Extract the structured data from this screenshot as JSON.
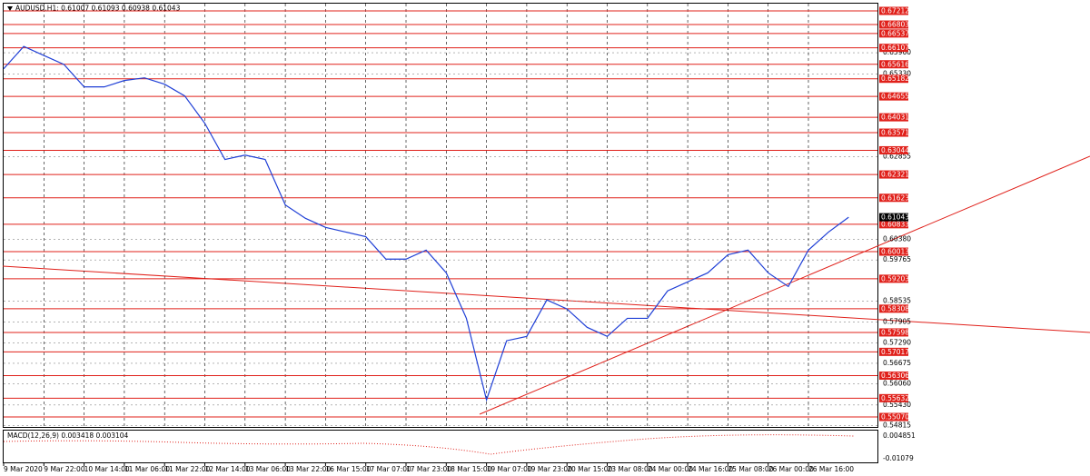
{
  "chart_data": {
    "type": "line",
    "title": "AUDUSD,H1: 0.61007 0.61093 0.60938 0.61043",
    "categories": [
      "9 Mar 2020",
      null,
      "9 Mar 22:00",
      null,
      "10 Mar 14:00",
      null,
      "11 Mar 06:00",
      null,
      "11 Mar 22:00",
      null,
      "12 Mar 14:00",
      null,
      "13 Mar 06:00",
      null,
      "13 Mar 22:00",
      null,
      "16 Mar 15:00",
      null,
      "17 Mar 07:00",
      null,
      "17 Mar 23:00",
      null,
      "18 Mar 15:00",
      null,
      "19 Mar 07:00",
      null,
      "19 Mar 23:00",
      null,
      "20 Mar 15:00",
      null,
      "23 Mar 08:00",
      null,
      "24 Mar 00:00",
      null,
      "24 Mar 16:00",
      null,
      "25 Mar 08:00",
      null,
      "26 Mar 00:00",
      null,
      "26 Mar 16:00",
      null,
      null
    ],
    "series": [
      {
        "color": "#1f3fd6",
        "values": [
          0.6548,
          0.6615,
          0.6588,
          0.6561,
          0.6494,
          0.6494,
          0.6513,
          0.6521,
          0.6502,
          0.6467,
          0.6385,
          0.6277,
          0.629,
          0.6277,
          0.6141,
          0.6101,
          0.6074,
          0.606,
          0.6046,
          0.5979,
          0.5979,
          0.6006,
          0.5938,
          0.5802,
          0.5558,
          0.5735,
          0.5748,
          0.5857,
          0.583,
          0.5775,
          0.5748,
          0.5802,
          0.5802,
          0.5884,
          0.5911,
          0.5938,
          0.5992,
          0.6006,
          0.5938,
          0.5897,
          0.6006,
          0.606,
          0.61043
        ]
      }
    ],
    "last": 0.61043,
    "ylim": [
      0.54772,
      0.67429
    ],
    "yticks": [
      {
        "value": 0.6596,
        "label": "0.65960"
      },
      {
        "value": 0.6533,
        "label": "0.65330"
      },
      0.62855,
      {
        "value": 0.6038,
        "label": "0.60380"
      },
      0.59765,
      0.58535,
      0.57905,
      {
        "value": 0.5729,
        "label": "0.57290"
      },
      0.56675,
      {
        "value": 0.5606,
        "label": "0.56060"
      },
      {
        "value": 0.5543,
        "label": "0.55430"
      },
      0.54815
    ],
    "levels": [
      0.67212,
      0.66803,
      0.66537,
      0.66107,
      0.65616,
      0.65182,
      0.64655,
      0.64031,
      0.63571,
      0.63044,
      0.62321,
      0.61623,
      0.60833,
      0.60013,
      0.59203,
      0.58308,
      0.57598,
      0.57017,
      0.56306,
      0.55632,
      {
        "value": 0.5507,
        "label": "0.55070"
      }
    ],
    "level_color": "#e0201a",
    "macd": {
      "title": "MACD(12,26,9) 0.003418 0.003104",
      "yticks": [
        0.004851,
        -0.01079
      ]
    }
  }
}
